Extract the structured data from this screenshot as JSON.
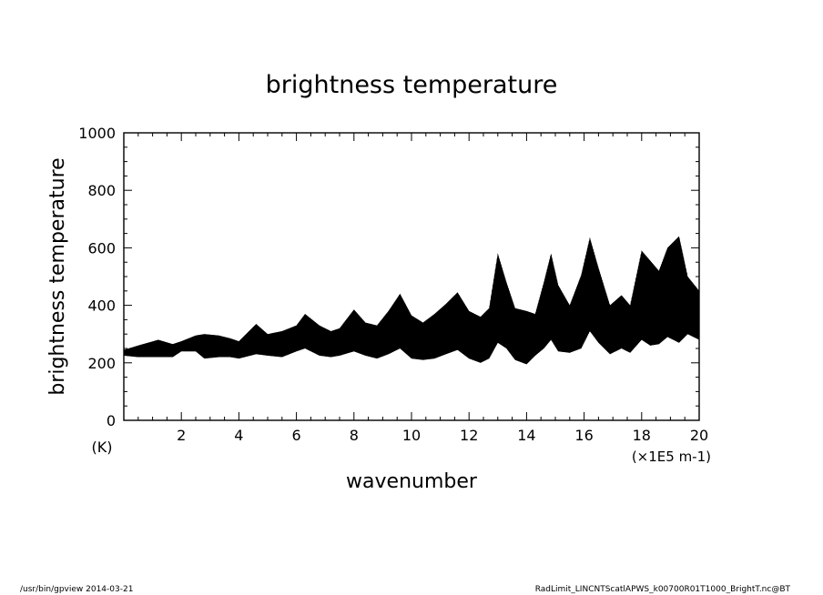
{
  "chart_data": {
    "type": "line",
    "title": "brightness temperature",
    "xlabel": "wavenumber",
    "ylabel": "brightness temperature",
    "y_unit": "(K)",
    "x_unit": "(×1E5 m-1)",
    "xlim": [
      0,
      20
    ],
    "ylim": [
      0,
      1000
    ],
    "x_ticks": [
      2,
      4,
      6,
      8,
      10,
      12,
      14,
      16,
      18,
      20
    ],
    "y_ticks": [
      0,
      200,
      400,
      600,
      800,
      1000
    ],
    "x_tick_labels": [
      "2",
      "4",
      "6",
      "8",
      "10",
      "12",
      "14",
      "16",
      "18",
      "20"
    ],
    "y_tick_labels": [
      "0",
      "200",
      "400",
      "600",
      "800",
      "1000"
    ],
    "grid": false,
    "line_color": "#000000",
    "series": [
      {
        "style": "dense-oscillating-band",
        "x": [
          0.0,
          0.5,
          1.2,
          1.7,
          2.0,
          2.5,
          2.8,
          3.3,
          3.7,
          4.0,
          4.6,
          5.0,
          5.5,
          6.0,
          6.3,
          6.8,
          7.2,
          7.5,
          8.0,
          8.4,
          8.8,
          9.2,
          9.6,
          10.0,
          10.4,
          10.8,
          11.2,
          11.6,
          12.0,
          12.4,
          12.7,
          13.0,
          13.3,
          13.6,
          14.0,
          14.3,
          14.6,
          14.85,
          15.1,
          15.5,
          15.9,
          16.2,
          16.5,
          16.9,
          17.3,
          17.6,
          18.0,
          18.3,
          18.6,
          18.9,
          19.3,
          19.6,
          20.0
        ],
        "upper": [
          245,
          260,
          280,
          265,
          275,
          295,
          300,
          295,
          285,
          275,
          335,
          300,
          310,
          330,
          370,
          330,
          310,
          320,
          385,
          340,
          330,
          380,
          440,
          365,
          340,
          370,
          405,
          445,
          380,
          360,
          390,
          580,
          480,
          390,
          380,
          370,
          480,
          580,
          470,
          400,
          505,
          635,
          530,
          400,
          435,
          400,
          590,
          555,
          520,
          600,
          640,
          500,
          450
        ],
        "lower": [
          225,
          220,
          220,
          220,
          240,
          240,
          215,
          220,
          220,
          215,
          230,
          225,
          220,
          240,
          250,
          225,
          220,
          225,
          240,
          225,
          215,
          230,
          250,
          215,
          210,
          215,
          230,
          245,
          215,
          200,
          215,
          270,
          250,
          210,
          195,
          225,
          250,
          280,
          240,
          235,
          250,
          310,
          270,
          230,
          250,
          235,
          280,
          260,
          265,
          290,
          270,
          300,
          280
        ]
      }
    ]
  },
  "footer": {
    "left": "/usr/bin/gpview   2014-03-21",
    "right": "RadLimit_LINCNTScatlAPWS_k00700R01T1000_BrightT.nc@BT"
  }
}
